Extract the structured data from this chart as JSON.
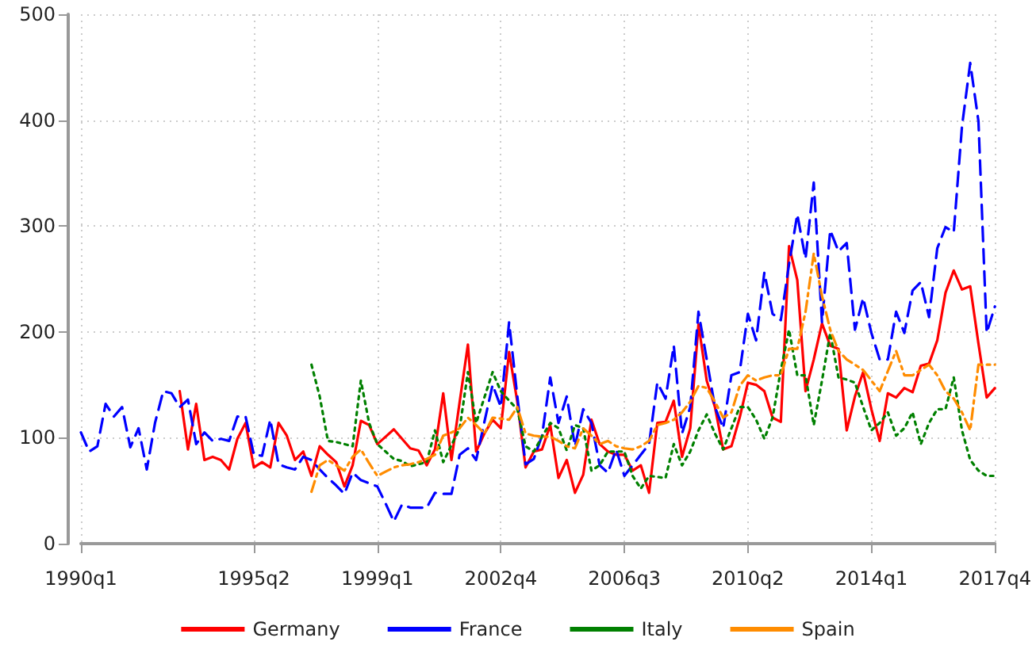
{
  "chart_data": {
    "type": "line",
    "categories": [
      "1990q1",
      null,
      null,
      null,
      null,
      null,
      null,
      null,
      null,
      null,
      null,
      null,
      null,
      null,
      null,
      null,
      null,
      null,
      null,
      null,
      null,
      "1995q2",
      null,
      null,
      null,
      null,
      null,
      null,
      null,
      null,
      null,
      null,
      null,
      null,
      null,
      null,
      "1999q1",
      null,
      null,
      null,
      null,
      null,
      null,
      null,
      null,
      null,
      null,
      null,
      null,
      null,
      null,
      "2002q4",
      null,
      null,
      null,
      null,
      null,
      null,
      null,
      null,
      null,
      null,
      null,
      null,
      null,
      null,
      "2006q3",
      null,
      null,
      null,
      null,
      null,
      null,
      null,
      null,
      null,
      null,
      null,
      null,
      null,
      null,
      "2010q2",
      null,
      null,
      null,
      null,
      null,
      null,
      null,
      null,
      null,
      null,
      null,
      null,
      null,
      null,
      "2014q1",
      null,
      null,
      null,
      null,
      null,
      null,
      null,
      null,
      null,
      null,
      null,
      null,
      null,
      null,
      "2017q4"
    ],
    "ylim": [
      0,
      500
    ],
    "yticks": [
      0,
      100,
      200,
      300,
      400,
      500
    ],
    "grid": true,
    "legend": "bottom",
    "marker": "none",
    "series": [
      {
        "name": "Germany",
        "color": "#ff0000",
        "line_style": "solid",
        "values": [
          null,
          null,
          null,
          null,
          null,
          null,
          null,
          null,
          null,
          null,
          null,
          null,
          144,
          89,
          132,
          79,
          82,
          79,
          70,
          99,
          114,
          72,
          77,
          72,
          114,
          102,
          79,
          87,
          64,
          92,
          84,
          77,
          54,
          74,
          116,
          112,
          94,
          101,
          108,
          99,
          90,
          88,
          74,
          89,
          142,
          79,
          134,
          188,
          87,
          104,
          117,
          109,
          181,
          134,
          72,
          87,
          89,
          112,
          62,
          79,
          48,
          65,
          117,
          94,
          87,
          84,
          84,
          69,
          74,
          48,
          114,
          115,
          135,
          82,
          109,
          207,
          154,
          129,
          89,
          92,
          119,
          152,
          150,
          144,
          119,
          115,
          281,
          249,
          144,
          174,
          208,
          187,
          184,
          107,
          139,
          162,
          127,
          97,
          142,
          138,
          147,
          143,
          168,
          170,
          192,
          237,
          258,
          240,
          243,
          189,
          138,
          147
        ]
      },
      {
        "name": "France",
        "color": "#0000ff",
        "line_style": "dashed",
        "values": [
          105,
          87,
          92,
          132,
          120,
          129,
          91,
          109,
          70,
          114,
          144,
          142,
          129,
          136,
          94,
          105,
          97,
          99,
          97,
          120,
          120,
          84,
          83,
          117,
          75,
          72,
          70,
          82,
          79,
          70,
          62,
          55,
          47,
          67,
          60,
          57,
          54,
          38,
          21,
          37,
          34,
          34,
          34,
          48,
          47,
          47,
          84,
          90,
          79,
          115,
          150,
          129,
          209,
          139,
          75,
          80,
          102,
          157,
          114,
          139,
          92,
          127,
          114,
          74,
          67,
          89,
          64,
          74,
          84,
          94,
          152,
          137,
          187,
          104,
          129,
          219,
          174,
          129,
          109,
          159,
          162,
          217,
          192,
          256,
          217,
          211,
          264,
          311,
          269,
          341,
          209,
          296,
          276,
          284,
          202,
          232,
          199,
          174,
          174,
          219,
          199,
          239,
          247,
          214,
          279,
          299,
          294,
          394,
          454,
          399,
          199,
          224
        ]
      },
      {
        "name": "Italy",
        "color": "#008000",
        "line_style": "dotted",
        "values": [
          null,
          null,
          null,
          null,
          null,
          null,
          null,
          null,
          null,
          null,
          null,
          null,
          null,
          null,
          null,
          null,
          null,
          null,
          null,
          null,
          null,
          null,
          null,
          null,
          null,
          null,
          null,
          null,
          169,
          139,
          97,
          96,
          94,
          92,
          154,
          114,
          94,
          87,
          80,
          78,
          73,
          75,
          77,
          107,
          77,
          93,
          109,
          162,
          114,
          138,
          162,
          144,
          135,
          127,
          92,
          87,
          101,
          114,
          109,
          88,
          112,
          109,
          69,
          74,
          87,
          87,
          87,
          64,
          52,
          64,
          63,
          62,
          94,
          74,
          87,
          107,
          122,
          104,
          89,
          109,
          129,
          129,
          117,
          99,
          119,
          164,
          202,
          159,
          159,
          112,
          154,
          199,
          157,
          155,
          152,
          129,
          107,
          114,
          124,
          102,
          109,
          124,
          94,
          114,
          127,
          127,
          157,
          107,
          79,
          69,
          64,
          64
        ]
      },
      {
        "name": "Spain",
        "color": "#ff8c00",
        "line_style": "dashdot",
        "values": [
          null,
          null,
          null,
          null,
          null,
          null,
          null,
          null,
          null,
          null,
          null,
          null,
          null,
          null,
          null,
          null,
          null,
          null,
          null,
          null,
          null,
          null,
          null,
          null,
          null,
          null,
          null,
          null,
          49,
          74,
          79,
          74,
          69,
          82,
          89,
          76,
          64,
          68,
          72,
          74,
          75,
          77,
          80,
          84,
          102,
          105,
          109,
          119,
          112,
          104,
          119,
          118,
          117,
          129,
          104,
          102,
          101,
          101,
          97,
          92,
          90,
          109,
          102,
          94,
          97,
          92,
          90,
          89,
          92,
          97,
          112,
          114,
          117,
          124,
          134,
          149,
          147,
          134,
          119,
          124,
          149,
          159,
          154,
          157,
          159,
          159,
          184,
          184,
          219,
          274,
          234,
          202,
          182,
          174,
          169,
          164,
          154,
          144,
          163,
          182,
          159,
          159,
          164,
          169,
          159,
          144,
          137,
          124,
          107,
          169,
          169,
          169
        ]
      }
    ]
  }
}
